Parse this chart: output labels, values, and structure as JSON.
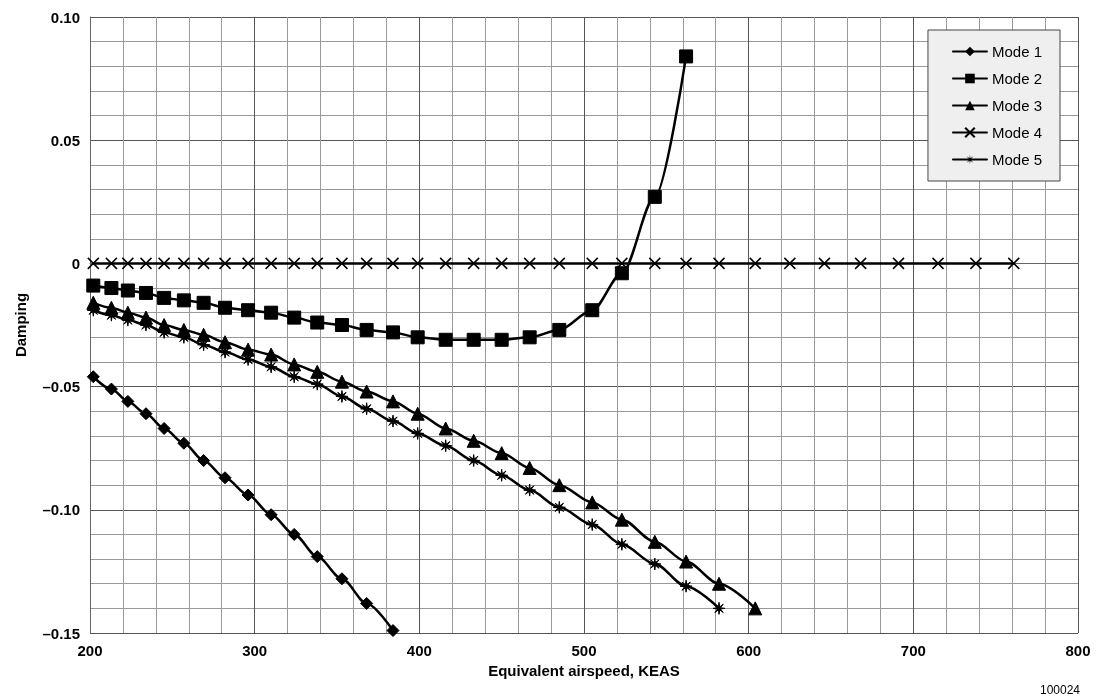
{
  "chart_data": {
    "type": "line",
    "xlabel": "Equivalent airspeed, KEAS",
    "ylabel": "Damping",
    "x": [
      202,
      213,
      223,
      234,
      245,
      257,
      269,
      282,
      296,
      310,
      324,
      338,
      353,
      368,
      384,
      399,
      416,
      433,
      450,
      467,
      485,
      505,
      523,
      543,
      562,
      582,
      604,
      625,
      646,
      668,
      691,
      715,
      738,
      761
    ],
    "series": [
      {
        "name": "Mode 1",
        "color": "#000000",
        "marker": "diamond",
        "values": [
          -0.046,
          -0.051,
          -0.056,
          -0.061,
          -0.067,
          -0.073,
          -0.08,
          -0.087,
          -0.094,
          -0.102,
          -0.11,
          -0.119,
          -0.128,
          -0.138,
          -0.149,
          null,
          null,
          null,
          null,
          null,
          null,
          null,
          null,
          null,
          null,
          null,
          null,
          null,
          null,
          null,
          null,
          null,
          null,
          null
        ]
      },
      {
        "name": "Mode 2",
        "color": "#000000",
        "marker": "square",
        "values": [
          -0.009,
          -0.01,
          -0.011,
          -0.012,
          -0.014,
          -0.015,
          -0.016,
          -0.018,
          -0.019,
          -0.02,
          -0.022,
          -0.024,
          -0.025,
          -0.027,
          -0.028,
          -0.03,
          -0.031,
          -0.031,
          -0.031,
          -0.03,
          -0.027,
          -0.019,
          -0.004,
          0.027,
          0.084,
          null,
          null,
          null,
          null,
          null,
          null,
          null,
          null,
          null
        ]
      },
      {
        "name": "Mode 3",
        "color": "#000000",
        "marker": "triangle",
        "values": [
          -0.016,
          -0.018,
          -0.02,
          -0.022,
          -0.025,
          -0.027,
          -0.029,
          -0.032,
          -0.035,
          -0.037,
          -0.041,
          -0.044,
          -0.048,
          -0.052,
          -0.056,
          -0.061,
          -0.067,
          -0.072,
          -0.077,
          -0.083,
          -0.09,
          -0.097,
          -0.104,
          -0.113,
          -0.121,
          -0.13,
          -0.14,
          null,
          null,
          null,
          null,
          null,
          null,
          null
        ]
      },
      {
        "name": "Mode 4",
        "color": "#000000",
        "marker": "cross",
        "values": [
          0,
          0,
          0,
          0,
          0,
          0,
          0,
          0,
          0,
          0,
          0,
          0,
          0,
          0,
          0,
          0,
          0,
          0,
          0,
          0,
          0,
          0,
          0,
          0,
          0,
          0,
          0,
          0,
          0,
          0,
          0,
          0,
          0,
          0
        ]
      },
      {
        "name": "Mode 5",
        "color": "#000000",
        "marker": "star",
        "values": [
          -0.019,
          -0.021,
          -0.023,
          -0.025,
          -0.028,
          -0.03,
          -0.033,
          -0.036,
          -0.039,
          -0.042,
          -0.046,
          -0.049,
          -0.054,
          -0.059,
          -0.064,
          -0.069,
          -0.074,
          -0.08,
          -0.086,
          -0.092,
          -0.099,
          -0.106,
          -0.114,
          -0.122,
          -0.131,
          -0.14,
          null,
          null,
          null,
          null,
          null,
          null,
          null,
          null
        ]
      }
    ],
    "xlim": [
      200,
      800
    ],
    "xticks": [
      200,
      300,
      400,
      500,
      600,
      700,
      800
    ],
    "ylim": [
      -0.15,
      0.1
    ],
    "yticks": [
      {
        "value": -0.15,
        "label": "–0.15"
      },
      {
        "value": -0.1,
        "label": "–0.10"
      },
      {
        "value": -0.05,
        "label": "–0.05"
      },
      0,
      0.05,
      {
        "value": 0.1,
        "label": "0.10"
      }
    ],
    "grid": true,
    "legend": "top right",
    "line_style": "solid",
    "annotations": [
      "100024"
    ]
  }
}
